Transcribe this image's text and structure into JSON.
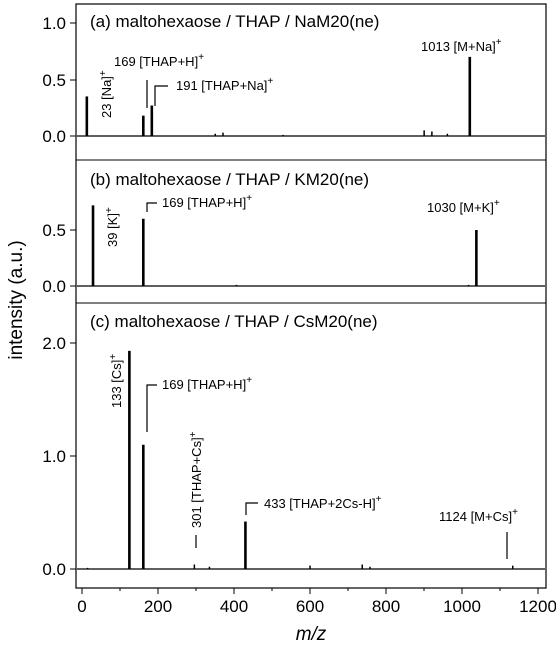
{
  "chart_data": {
    "type": "bar",
    "xlabel": "m/z",
    "ylabel": "intensity (a.u.)",
    "xlim": [
      -5,
      1210
    ],
    "xticks": [
      "0",
      "200",
      "400",
      "600",
      "800",
      "1000",
      "1200"
    ],
    "panels": [
      {
        "title": "(a) maltohexaose / THAP / NaM20(ne)",
        "ylim": [
          -0.06,
          1.1
        ],
        "yticks": [
          "0.0",
          "0.5",
          "1.0"
        ],
        "peaks": [
          {
            "x": 23,
            "y": 0.35
          },
          {
            "x": 169,
            "y": 0.18
          },
          {
            "x": 191,
            "y": 0.27
          },
          {
            "x": 1013,
            "y": 0.7
          },
          {
            "x": 355,
            "y": 0.02
          },
          {
            "x": 375,
            "y": 0.03
          },
          {
            "x": 530,
            "y": 0.01
          },
          {
            "x": 895,
            "y": 0.05
          },
          {
            "x": 915,
            "y": 0.04
          },
          {
            "x": 955,
            "y": 0.02
          }
        ],
        "annotations": [
          {
            "text": "23 [Na]",
            "sup": "+",
            "x": 23
          },
          {
            "text": "169 [THAP+H]",
            "sup": "+",
            "x": 169
          },
          {
            "text": "191 [THAP+Na]",
            "sup": "+",
            "x": 191
          },
          {
            "text": "1013 [M+Na]",
            "sup": "+",
            "x": 1013
          }
        ]
      },
      {
        "title": "(b) maltohexaose / THAP / KM20(ne)",
        "ylim": [
          -0.06,
          1.1
        ],
        "yticks": [
          "0.0",
          "0.5",
          ""
        ],
        "peaks": [
          {
            "x": 39,
            "y": 0.72
          },
          {
            "x": 169,
            "y": 0.6
          },
          {
            "x": 1030,
            "y": 0.5
          },
          {
            "x": 410,
            "y": 0.01
          },
          {
            "x": 1010,
            "y": 0.01
          }
        ],
        "annotations": [
          {
            "text": "39 [K]",
            "sup": "+",
            "x": 39
          },
          {
            "text": "169 [THAP+H]",
            "sup": "+",
            "x": 169
          },
          {
            "text": "1030 [M+K]",
            "sup": "+",
            "x": 1030
          }
        ]
      },
      {
        "title": "(c) maltohexaose / THAP / CsM20(ne)",
        "ylim": [
          -0.06,
          2.3
        ],
        "yticks": [
          "0.0",
          "1.0",
          "2.0"
        ],
        "peaks": [
          {
            "x": 133,
            "y": 1.93
          },
          {
            "x": 169,
            "y": 1.1
          },
          {
            "x": 301,
            "y": 0.04
          },
          {
            "x": 433,
            "y": 0.42
          },
          {
            "x": 1124,
            "y": 0.03
          },
          {
            "x": 340,
            "y": 0.02
          },
          {
            "x": 600,
            "y": 0.03
          },
          {
            "x": 735,
            "y": 0.04
          },
          {
            "x": 755,
            "y": 0.02
          },
          {
            "x": 25,
            "y": 0.01
          }
        ],
        "annotations": [
          {
            "text": "133 [Cs]",
            "sup": "+",
            "x": 133
          },
          {
            "text": "169 [THAP+H]",
            "sup": "+",
            "x": 169
          },
          {
            "text": "301 [THAP+Cs]",
            "sup": "+",
            "x": 301
          },
          {
            "text": "433 [THAP+2Cs-H]",
            "sup": "+",
            "x": 433
          },
          {
            "text": "1124 [M+Cs]",
            "sup": "+",
            "x": 1124
          }
        ]
      }
    ]
  }
}
